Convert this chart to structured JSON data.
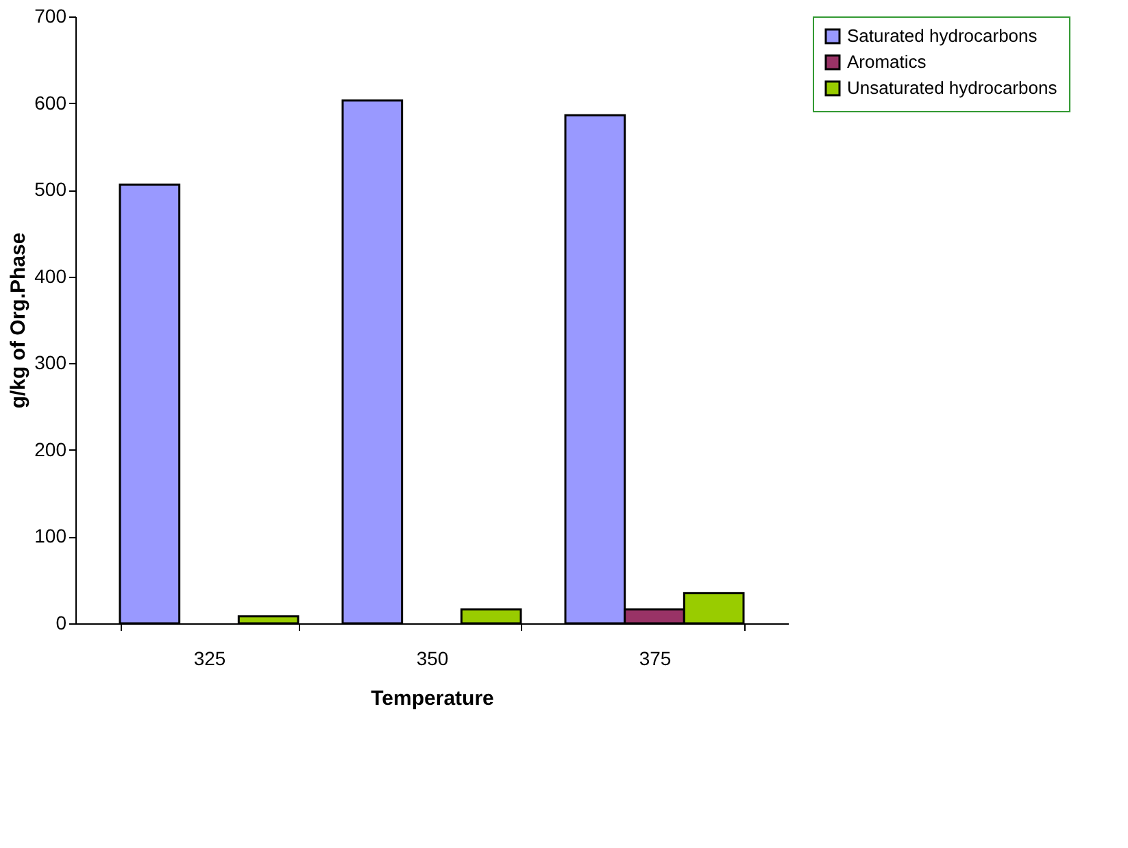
{
  "chart_data": {
    "type": "bar",
    "xlabel": "Temperature",
    "ylabel": "g/kg of Org.Phase",
    "categories": [
      "325",
      "350",
      "375"
    ],
    "series": [
      {
        "name": "Saturated hydrocarbons",
        "color": "#9999ff",
        "values": [
          506,
          603,
          586
        ]
      },
      {
        "name": "Aromatics",
        "color": "#993366",
        "values": [
          null,
          null,
          16
        ]
      },
      {
        "name": "Unsaturated hydrocarbons",
        "color": "#99cc00",
        "values": [
          8,
          16,
          35
        ]
      }
    ],
    "ylim": [
      0,
      700
    ],
    "yticks": [
      0,
      100,
      200,
      300,
      400,
      500,
      600,
      700
    ],
    "grid": false,
    "legend": "right"
  }
}
